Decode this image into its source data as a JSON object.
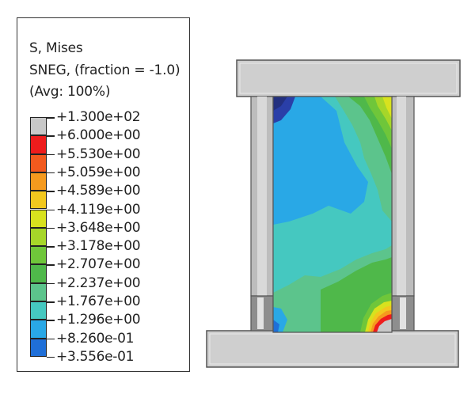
{
  "legend": {
    "title_line1": "S, Mises",
    "title_line2": "SNEG, (fraction = -1.0)",
    "title_line3": "(Avg: 100%)",
    "levels": [
      {
        "label": "+1.300e+02",
        "color": "#c8c8c8"
      },
      {
        "label": "+6.000e+00",
        "color": "#ee1c1c"
      },
      {
        "label": "+5.530e+00",
        "color": "#f25a1e"
      },
      {
        "label": "+5.059e+00",
        "color": "#f59a1e"
      },
      {
        "label": "+4.589e+00",
        "color": "#f2c81e"
      },
      {
        "label": "+4.119e+00",
        "color": "#d8e21e"
      },
      {
        "label": "+3.648e+00",
        "color": "#a6d629"
      },
      {
        "label": "+3.178e+00",
        "color": "#6fc63a"
      },
      {
        "label": "+2.707e+00",
        "color": "#4fb84a"
      },
      {
        "label": "+2.237e+00",
        "color": "#5cc48c"
      },
      {
        "label": "+1.767e+00",
        "color": "#45c8c0"
      },
      {
        "label": "+1.296e+00",
        "color": "#29a8e6"
      },
      {
        "label": "+8.260e-01",
        "color": "#1f6fd8"
      },
      {
        "label": "+3.556e-01",
        "color": "#2a3fa8"
      }
    ]
  },
  "colors": {
    "steel": "#cfcfcf",
    "steel_dark": "#9a9a9a",
    "outline": "#555555"
  }
}
